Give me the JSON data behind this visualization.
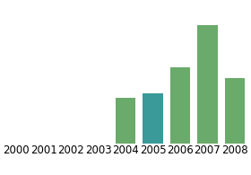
{
  "categories": [
    "2000",
    "2001",
    "2002",
    "2003",
    "2004",
    "2005",
    "2006",
    "2007",
    "2008"
  ],
  "values": [
    0,
    0,
    0,
    0,
    35,
    38,
    58,
    90,
    50
  ],
  "bar_colors": [
    "#77aa66",
    "#77aa66",
    "#77aa66",
    "#77aa66",
    "#6aaa6a",
    "#3a9a99",
    "#6aaa6a",
    "#6aaa6a",
    "#6aaa6a"
  ],
  "ylim": [
    0,
    105
  ],
  "background_color": "#ffffff",
  "grid_color": "#d0d0d0",
  "bar_width": 0.75,
  "tick_fontsize": 8.5,
  "grid_linewidth": 0.8,
  "n_gridlines": 6
}
